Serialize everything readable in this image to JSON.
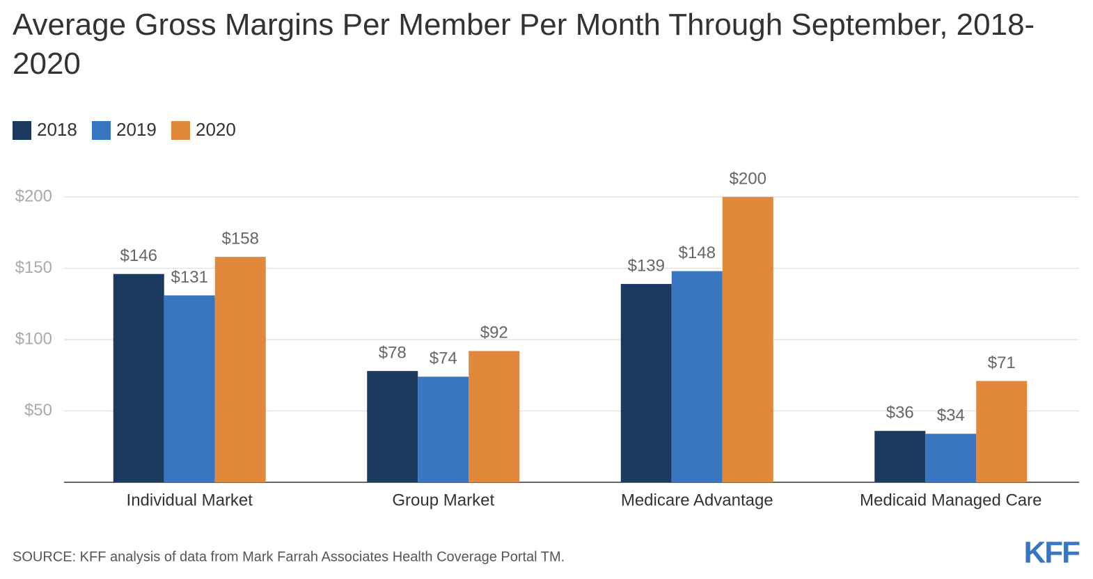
{
  "chart_data": {
    "type": "bar",
    "title": "Average Gross Margins Per Member Per Month Through September, 2018-2020",
    "categories": [
      "Individual Market",
      "Group Market",
      "Medicare Advantage",
      "Medicaid Managed Care"
    ],
    "series": [
      {
        "name": "2018",
        "color": "#1c3a60",
        "values": [
          146,
          78,
          139,
          36
        ],
        "value_labels": [
          "$146",
          "$78",
          "$139",
          "$36"
        ]
      },
      {
        "name": "2019",
        "color": "#3876c2",
        "values": [
          131,
          74,
          148,
          34
        ],
        "value_labels": [
          "$131",
          "$74",
          "$148",
          "$34"
        ]
      },
      {
        "name": "2020",
        "color": "#e2883a",
        "values": [
          158,
          92,
          200,
          71
        ],
        "value_labels": [
          "$158",
          "$92",
          "$200",
          "$71"
        ]
      }
    ],
    "ylim": [
      0,
      200
    ],
    "yticks": [
      {
        "value": 50,
        "label": "$50"
      },
      {
        "value": 100,
        "label": "$100"
      },
      {
        "value": 150,
        "label": "$150"
      },
      {
        "value": 200,
        "label": "$200"
      }
    ],
    "grid": true,
    "legend": "top-left",
    "source": "SOURCE: KFF analysis of data from Mark Farrah Associates Health Coverage Portal TM.",
    "logo": "KFF"
  }
}
